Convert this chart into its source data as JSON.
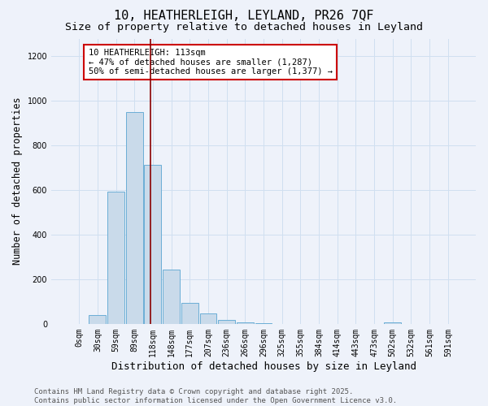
{
  "title": "10, HEATHERLEIGH, LEYLAND, PR26 7QF",
  "subtitle": "Size of property relative to detached houses in Leyland",
  "xlabel": "Distribution of detached houses by size in Leyland",
  "ylabel": "Number of detached properties",
  "bar_labels": [
    "0sqm",
    "30sqm",
    "59sqm",
    "89sqm",
    "118sqm",
    "148sqm",
    "177sqm",
    "207sqm",
    "236sqm",
    "266sqm",
    "296sqm",
    "325sqm",
    "355sqm",
    "384sqm",
    "414sqm",
    "443sqm",
    "473sqm",
    "502sqm",
    "532sqm",
    "561sqm",
    "591sqm"
  ],
  "bar_values": [
    0,
    40,
    595,
    950,
    715,
    245,
    95,
    45,
    18,
    5,
    2,
    1,
    0,
    0,
    1,
    0,
    0,
    6,
    0,
    0,
    0
  ],
  "bar_color": "#c9daea",
  "bar_edge_color": "#6baed6",
  "grid_color": "#d0dff0",
  "background_color": "#eef2fa",
  "vline_color": "#8b0000",
  "annotation_text": "10 HEATHERLEIGH: 113sqm\n← 47% of detached houses are smaller (1,287)\n50% of semi-detached houses are larger (1,377) →",
  "annotation_box_color": "#ffffff",
  "annotation_box_edge_color": "#cc0000",
  "ylim": [
    0,
    1280
  ],
  "yticks": [
    0,
    200,
    400,
    600,
    800,
    1000,
    1200
  ],
  "footer_text": "Contains HM Land Registry data © Crown copyright and database right 2025.\nContains public sector information licensed under the Open Government Licence v3.0.",
  "title_fontsize": 11,
  "subtitle_fontsize": 9.5,
  "xlabel_fontsize": 9,
  "ylabel_fontsize": 8.5,
  "tick_fontsize": 7,
  "annotation_fontsize": 7.5,
  "footer_fontsize": 6.5
}
